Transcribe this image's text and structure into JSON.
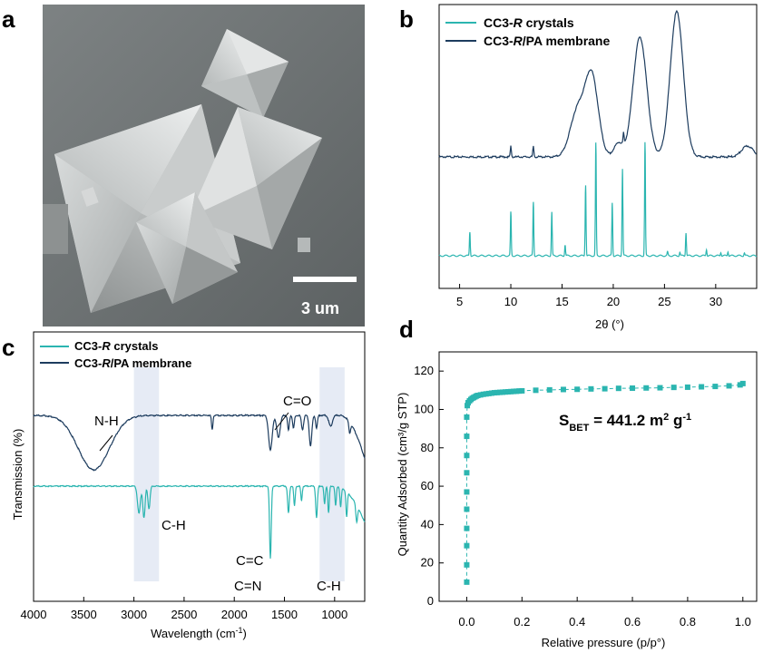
{
  "figure": {
    "panel_labels": [
      "a",
      "b",
      "c",
      "d"
    ],
    "colors": {
      "crystals": "#2bb5b0",
      "membrane": "#1d3c5e",
      "band": "#e6ebf5",
      "sem_bg": "#6e7374"
    }
  },
  "panel_a": {
    "scale_bar_label": "3 um"
  },
  "panel_b": {
    "legend": {
      "crystals": "CC3-",
      "crystals_italic": "R",
      "crystals_suffix": " crystals",
      "membrane": "CC3-",
      "membrane_italic": "R",
      "membrane_suffix": "/PA membrane"
    },
    "xlabel": "2θ (°)"
  },
  "panel_c": {
    "legend": {
      "crystals": "CC3-",
      "crystals_italic": "R",
      "crystals_suffix": " crystals",
      "membrane": "CC3-",
      "membrane_italic": "R",
      "membrane_suffix": "/PA  membrane"
    },
    "annotations": {
      "nh": "N-H",
      "co": "C=O",
      "ch1": "C-H",
      "cc": "C=C",
      "cn": "C=N",
      "ch2": "C-H"
    },
    "xlabel": "Wavelength (cm-1)",
    "ylabel": "Transmission (%)"
  },
  "panel_d": {
    "sbet_label": "S",
    "sbet_sub": "BET",
    "sbet_value": " = 441.2 m",
    "sbet_sup1": "2",
    "sbet_g": " g",
    "sbet_sup2": "-1",
    "xlabel": "Relative pressure (p/p°)",
    "ylabel": "Quantity Adsorbed (cm³/g STP)"
  },
  "chart_data": [
    {
      "id": "b",
      "type": "line",
      "title": "",
      "xlabel": "2θ (°)",
      "ylabel": "",
      "xlim": [
        3,
        34
      ],
      "x_ticks": [
        5,
        10,
        15,
        20,
        25,
        30
      ],
      "series": [
        {
          "name": "CC3-R crystals",
          "peaks": [
            [
              6.0,
              0.33
            ],
            [
              10.0,
              0.6
            ],
            [
              12.2,
              0.74
            ],
            [
              14.0,
              0.6
            ],
            [
              15.3,
              0.15
            ],
            [
              17.3,
              0.98
            ],
            [
              18.3,
              1.55
            ],
            [
              19.9,
              0.73
            ],
            [
              20.9,
              1.2
            ],
            [
              23.1,
              1.56
            ],
            [
              25.3,
              0.05
            ],
            [
              26.5,
              0.05
            ],
            [
              27.1,
              0.32
            ],
            [
              29.1,
              0.09
            ],
            [
              30.5,
              0.05
            ],
            [
              31.2,
              0.06
            ],
            [
              32.8,
              0.04
            ]
          ]
        },
        {
          "name": "CC3-R/PA membrane",
          "broad_peaks": [
            [
              16.5,
              0.5,
              1.0
            ],
            [
              17.9,
              0.88,
              0.9
            ],
            [
              22.6,
              1.32,
              0.95
            ],
            [
              26.2,
              1.6,
              0.9
            ],
            [
              20.5,
              0.15,
              0.6
            ],
            [
              33.1,
              0.12,
              0.8
            ]
          ]
        }
      ]
    },
    {
      "id": "c",
      "type": "line",
      "title": "",
      "xlabel": "Wavelength (cm-1)",
      "ylabel": "Transmission (%)",
      "xlim": [
        4000,
        700
      ],
      "x_ticks": [
        4000,
        3500,
        3000,
        2500,
        2000,
        1500,
        1000
      ],
      "bands": [
        [
          3000,
          2750
        ],
        [
          1150,
          900
        ]
      ],
      "series": [
        {
          "name": "CC3-R crystals",
          "dips": [
            [
              2950,
              3.0,
              20
            ],
            [
              2900,
              3.5,
              16
            ],
            [
              2850,
              2.5,
              15
            ],
            [
              1640,
              8.0,
              12
            ],
            [
              1460,
              3.0,
              12
            ],
            [
              1400,
              2.2,
              10
            ],
            [
              1330,
              1.6,
              10
            ],
            [
              1180,
              3.5,
              12
            ],
            [
              1100,
              2.0,
              10
            ],
            [
              1060,
              3.0,
              10
            ],
            [
              990,
              2.2,
              10
            ],
            [
              940,
              2.2,
              10
            ],
            [
              880,
              2.8,
              10
            ],
            [
              780,
              1.8,
              12
            ]
          ]
        },
        {
          "name": "CC3-R/PA membrane",
          "dips": [
            [
              3400,
              5.0,
              220
            ],
            [
              2220,
              1.3,
              10
            ],
            [
              1640,
              3.2,
              25
            ],
            [
              1560,
              2.0,
              25
            ],
            [
              1460,
              1.4,
              12
            ],
            [
              1410,
              1.2,
              12
            ],
            [
              1320,
              1.3,
              15
            ],
            [
              1240,
              2.8,
              18
            ],
            [
              1180,
              1.2,
              12
            ],
            [
              1040,
              1.0,
              25
            ],
            [
              850,
              1.0,
              12
            ]
          ]
        }
      ]
    },
    {
      "id": "d",
      "type": "scatter",
      "title": "",
      "xlabel": "Relative pressure (p/p°)",
      "ylabel": "Quantity Adsorbed (cm³/g STP)",
      "xlim": [
        -0.1,
        1.05
      ],
      "ylim": [
        0,
        130
      ],
      "x_ticks": [
        0.0,
        0.2,
        0.4,
        0.6,
        0.8,
        1.0
      ],
      "y_ticks": [
        0,
        20,
        40,
        60,
        80,
        100,
        120
      ],
      "series": [
        {
          "name": "isotherm",
          "x": [
            0.0,
            0.0,
            0.0,
            0.0,
            0.0,
            0.0,
            0.0,
            0.0,
            0.0,
            0.0,
            0.002,
            0.005,
            0.01,
            0.015,
            0.02,
            0.025,
            0.03,
            0.035,
            0.04,
            0.05,
            0.06,
            0.07,
            0.08,
            0.09,
            0.1,
            0.11,
            0.12,
            0.13,
            0.14,
            0.15,
            0.16,
            0.17,
            0.18,
            0.19,
            0.2,
            0.25,
            0.3,
            0.35,
            0.4,
            0.45,
            0.5,
            0.55,
            0.6,
            0.65,
            0.7,
            0.75,
            0.8,
            0.85,
            0.9,
            0.95,
            0.99,
            1.0
          ],
          "y": [
            10,
            19,
            29,
            38,
            48,
            57,
            67,
            76,
            86,
            96,
            102,
            103.5,
            104.5,
            105.2,
            105.8,
            106.2,
            106.6,
            107,
            107.3,
            107.6,
            107.9,
            108.1,
            108.3,
            108.5,
            108.7,
            108.8,
            108.9,
            109.0,
            109.1,
            109.2,
            109.3,
            109.4,
            109.5,
            109.6,
            109.7,
            110.0,
            110.2,
            110.4,
            110.5,
            110.7,
            110.8,
            111.0,
            111.1,
            111.2,
            111.3,
            111.5,
            111.6,
            111.8,
            112.0,
            112.3,
            112.8,
            113.5
          ]
        }
      ]
    }
  ]
}
